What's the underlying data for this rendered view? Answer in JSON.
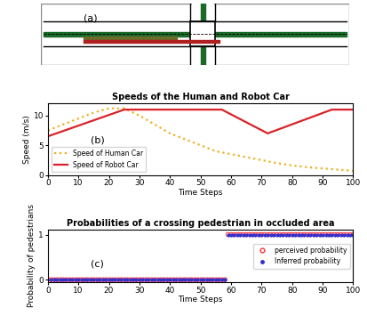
{
  "diagram": {
    "label": "(a)"
  },
  "chart_data": [
    {
      "type": "line",
      "title": "Speeds of the Human and Robot Car",
      "x_label": "Time Steps",
      "y_label": "Speed (m/s)",
      "annotations": [
        "(b)"
      ],
      "xlim": [
        0,
        100
      ],
      "xticks": [
        0,
        10,
        20,
        30,
        40,
        50,
        60,
        70,
        80,
        90,
        100
      ],
      "ylim": [
        0,
        12
      ],
      "yticks": [
        0,
        5,
        10
      ],
      "legend": "lower left",
      "series": [
        {
          "name": "Speed of Human Car",
          "color": "#EDB120",
          "line_style": "dotted",
          "x": [
            0,
            5,
            10,
            15,
            20,
            25,
            30,
            35,
            40,
            45,
            50,
            55,
            60,
            65,
            70,
            75,
            80,
            85,
            90,
            95,
            100
          ],
          "values": [
            7.5,
            8.5,
            9.5,
            10.5,
            11.2,
            11.2,
            10,
            8.5,
            7,
            6,
            5,
            4,
            3.5,
            3,
            2.5,
            2,
            1.6,
            1.3,
            1.1,
            0.9,
            0.7
          ]
        },
        {
          "name": "Speed of Robot Car",
          "color": "#D9232A",
          "line_style": "solid",
          "x": [
            0,
            25,
            57,
            72,
            93,
            100
          ],
          "values": [
            6.5,
            11,
            11,
            7,
            11,
            11
          ]
        }
      ]
    },
    {
      "type": "scatter",
      "title": "Probabilities of a crossing pedestrian in occluded area",
      "x_label": "Time Steps",
      "y_label": "Probability of pedestrians",
      "annotations": [
        "(c)"
      ],
      "xlim": [
        0,
        100
      ],
      "xticks": [
        0,
        10,
        20,
        30,
        40,
        50,
        60,
        70,
        80,
        90,
        100
      ],
      "ylim": [
        -0.05,
        1.1
      ],
      "yticks": [
        0,
        1
      ],
      "legend": "center right",
      "x": [
        1,
        2,
        3,
        4,
        5,
        6,
        7,
        8,
        9,
        10,
        11,
        12,
        13,
        14,
        15,
        16,
        17,
        18,
        19,
        20,
        21,
        22,
        23,
        24,
        25,
        26,
        27,
        28,
        29,
        30,
        31,
        32,
        33,
        34,
        35,
        36,
        37,
        38,
        39,
        40,
        41,
        42,
        43,
        44,
        45,
        46,
        47,
        48,
        49,
        50,
        51,
        52,
        53,
        54,
        55,
        56,
        57,
        58,
        59,
        60,
        61,
        62,
        63,
        64,
        65,
        66,
        67,
        68,
        69,
        70,
        71,
        72,
        73,
        74,
        75,
        76,
        77,
        78,
        79,
        80,
        81,
        82,
        83,
        84,
        85,
        86,
        87,
        88,
        89,
        90,
        91,
        92,
        93,
        94,
        95,
        96,
        97,
        98,
        99,
        100
      ],
      "series": [
        {
          "name": "perceived probability",
          "color": "#FF3030",
          "marker": "ring",
          "values": [
            0,
            0,
            0,
            0,
            0,
            0,
            0,
            0,
            0,
            0,
            0,
            0,
            0,
            0,
            0,
            0,
            0,
            0,
            0,
            0,
            0,
            0,
            0,
            0,
            0,
            0,
            0,
            0,
            0,
            0,
            0,
            0,
            0,
            0,
            0,
            0,
            0,
            0,
            0,
            0,
            0,
            0,
            0,
            0,
            0,
            0,
            0,
            0,
            0,
            0,
            0,
            0,
            0,
            0,
            0,
            0,
            0,
            0,
            1,
            1,
            1,
            1,
            1,
            1,
            1,
            1,
            1,
            1,
            1,
            1,
            1,
            1,
            1,
            1,
            1,
            1,
            1,
            1,
            1,
            1,
            1,
            1,
            1,
            1,
            1,
            1,
            1,
            1,
            1,
            1,
            1,
            1,
            1,
            1,
            1,
            1,
            1,
            1,
            1,
            1
          ]
        },
        {
          "name": "Inferred probability",
          "color": "#3030D0",
          "marker": "dot",
          "values": [
            0,
            0,
            0,
            0,
            0,
            0,
            0,
            0,
            0,
            0,
            0,
            0,
            0,
            0,
            0,
            0,
            0,
            0,
            0,
            0,
            0,
            0,
            0,
            0,
            0,
            0,
            0,
            0,
            0,
            0,
            0,
            0,
            0,
            0,
            0,
            0,
            0,
            0,
            0,
            0,
            0,
            0,
            0,
            0,
            0,
            0,
            0,
            0,
            0,
            0,
            0,
            0,
            0,
            0,
            0,
            0,
            0,
            0,
            1,
            1,
            1,
            1,
            1,
            1,
            1,
            1,
            1,
            1,
            1,
            1,
            1,
            1,
            1,
            1,
            1,
            1,
            1,
            1,
            1,
            1,
            1,
            1,
            1,
            1,
            1,
            1,
            1,
            1,
            1,
            1,
            1,
            1,
            1,
            1,
            1,
            1,
            1,
            1,
            1,
            1
          ]
        }
      ]
    }
  ]
}
